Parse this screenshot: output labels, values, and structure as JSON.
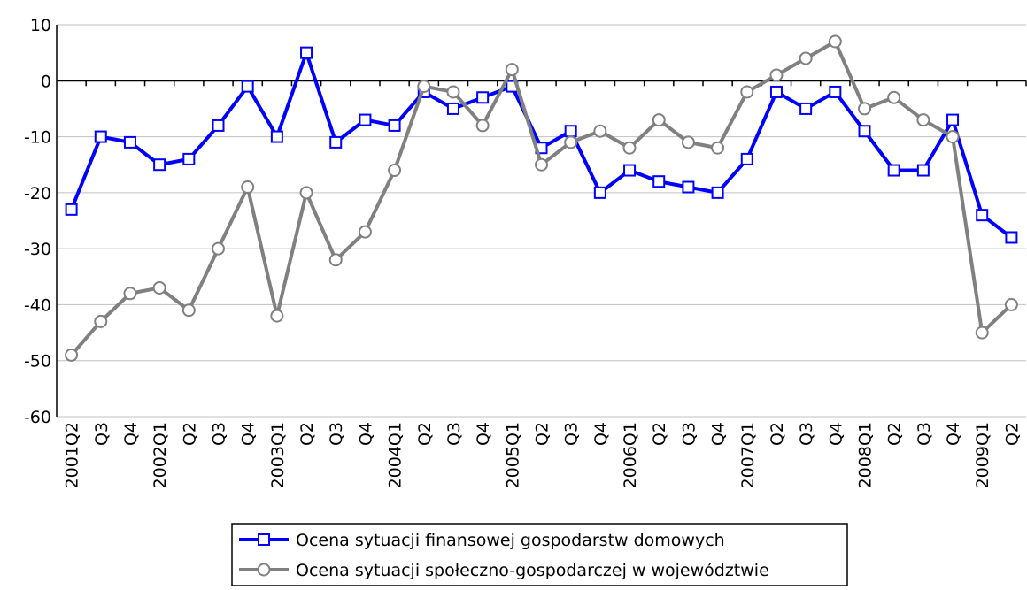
{
  "chart_data": {
    "type": "line",
    "categories": [
      "2001Q2",
      "Q3",
      "Q4",
      "2002Q1",
      "Q2",
      "Q3",
      "Q4",
      "2003Q1",
      "Q2",
      "Q3",
      "Q4",
      "2004Q1",
      "Q2",
      "Q3",
      "Q4",
      "2005Q1",
      "Q2",
      "Q3",
      "Q4",
      "2006Q1",
      "Q2",
      "Q3",
      "Q4",
      "2007Q1",
      "Q2",
      "Q3",
      "Q4",
      "2008Q1",
      "Q2",
      "Q3",
      "Q4",
      "2009Q1",
      "Q2"
    ],
    "series": [
      {
        "name": "Ocena sytuacji finansowej gospodarstw domowych",
        "color": "#0000ff",
        "marker": "square",
        "values": [
          -23,
          -10,
          -11,
          -15,
          -14,
          -8,
          -1,
          -10,
          5,
          -11,
          -7,
          -8,
          -2,
          -5,
          -3,
          -1,
          -12,
          -9,
          -20,
          -16,
          -18,
          -19,
          -20,
          -14,
          -2,
          -5,
          -2,
          -9,
          -16,
          -16,
          -7,
          -24,
          -28
        ]
      },
      {
        "name": "Ocena sytuacji społeczno-gospodarczej w województwie",
        "color": "#808080",
        "marker": "circle",
        "values": [
          -49,
          -43,
          -38,
          -37,
          -41,
          -30,
          -19,
          -42,
          -20,
          -32,
          -27,
          -16,
          -1,
          -2,
          -8,
          2,
          -15,
          -11,
          -9,
          -12,
          -7,
          -11,
          -12,
          -2,
          1,
          4,
          7,
          -5,
          -3,
          -7,
          -10,
          -45,
          -40
        ]
      }
    ],
    "ylim": [
      -60,
      10
    ],
    "yticks": [
      10,
      0,
      -10,
      -20,
      -30,
      -40,
      -50,
      -60
    ],
    "grid": true,
    "legend": "bottom"
  }
}
